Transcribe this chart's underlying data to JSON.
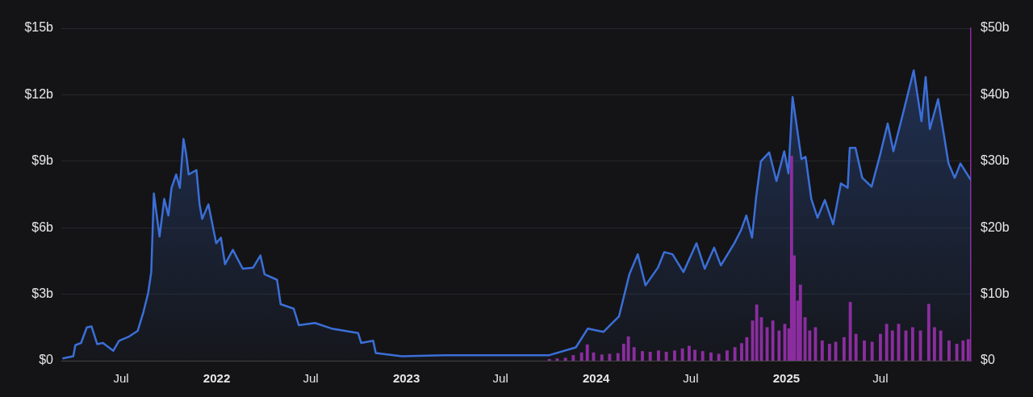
{
  "chart_data": {
    "type": "area",
    "xlim": [
      "2021-03-08",
      "2025-12-22"
    ],
    "xticks": [
      {
        "value": "2021-07-01",
        "label": "Jul"
      },
      {
        "value": "2022-01-01",
        "label": "2022"
      },
      {
        "value": "2022-07-01",
        "label": "Jul"
      },
      {
        "value": "2023-01-01",
        "label": "2023"
      },
      {
        "value": "2023-07-01",
        "label": "Jul"
      },
      {
        "value": "2024-01-01",
        "label": "2024"
      },
      {
        "value": "2024-07-01",
        "label": "Jul"
      },
      {
        "value": "2025-01-01",
        "label": "2025"
      },
      {
        "value": "2025-07-01",
        "label": "Jul"
      }
    ],
    "ylim": [
      0,
      15
    ],
    "yticks": [
      {
        "value": 0,
        "label": "$0"
      },
      {
        "value": 3,
        "label": "$3b"
      },
      {
        "value": 6,
        "label": "$6b"
      },
      {
        "value": 9,
        "label": "$9b"
      },
      {
        "value": 12,
        "label": "$12b"
      },
      {
        "value": 15,
        "label": "$15b"
      }
    ],
    "y2lim": [
      0,
      50
    ],
    "y2ticks": [
      {
        "value": 0,
        "label": "$0"
      },
      {
        "value": 10,
        "label": "$10b"
      },
      {
        "value": 20,
        "label": "$20b"
      },
      {
        "value": 30,
        "label": "$30b"
      },
      {
        "value": 40,
        "label": "$40b"
      },
      {
        "value": 50,
        "label": "$50b"
      }
    ],
    "grid": "y",
    "legend": false,
    "marker": "none",
    "series": [
      {
        "color": "#3b6fd8",
        "x": [
          "2021-03-10",
          "2021-03-31",
          "2021-04-04",
          "2021-04-15",
          "2021-04-26",
          "2021-05-05",
          "2021-05-16",
          "2021-05-27",
          "2021-06-16",
          "2021-06-27",
          "2021-07-17",
          "2021-08-02",
          "2021-08-13",
          "2021-08-22",
          "2021-08-28",
          "2021-09-02",
          "2021-09-13",
          "2021-09-22",
          "2021-09-30",
          "2021-10-06",
          "2021-10-15",
          "2021-10-22",
          "2021-10-29",
          "2021-11-03",
          "2021-11-08",
          "2021-11-23",
          "2021-11-29",
          "2021-12-04",
          "2021-12-16",
          "2021-12-31",
          "2022-01-09",
          "2022-01-17",
          "2022-02-01",
          "2022-02-20",
          "2022-03-12",
          "2022-03-26",
          "2022-04-03",
          "2022-04-27",
          "2022-05-04",
          "2022-05-29",
          "2022-06-08",
          "2022-07-09",
          "2022-08-10",
          "2022-09-30",
          "2022-10-06",
          "2022-10-29",
          "2022-11-03",
          "2022-12-23",
          "2023-03-15",
          "2023-07-01",
          "2023-10-03",
          "2023-11-23",
          "2023-12-16",
          "2024-01-15",
          "2024-02-14",
          "2024-03-05",
          "2024-03-21",
          "2024-04-05",
          "2024-04-29",
          "2024-05-11",
          "2024-05-27",
          "2024-06-17",
          "2024-07-12",
          "2024-07-28",
          "2024-08-15",
          "2024-08-28",
          "2024-09-23",
          "2024-10-06",
          "2024-10-16",
          "2024-10-27",
          "2024-11-04",
          "2024-11-13",
          "2024-11-29",
          "2024-12-13",
          "2024-12-28",
          "2025-01-05",
          "2025-01-13",
          "2025-01-30",
          "2025-02-07",
          "2025-02-18",
          "2025-03-02",
          "2025-03-16",
          "2025-04-01",
          "2025-04-16",
          "2025-04-29",
          "2025-05-03",
          "2025-05-14",
          "2025-05-27",
          "2025-06-14",
          "2025-06-30",
          "2025-07-15",
          "2025-07-26",
          "2025-08-15",
          "2025-09-03",
          "2025-09-18",
          "2025-09-26",
          "2025-10-04",
          "2025-10-20",
          "2025-11-09",
          "2025-11-21",
          "2025-12-02",
          "2025-12-22"
        ],
        "values": [
          0.1,
          0.2,
          0.7,
          0.8,
          1.5,
          1.55,
          0.75,
          0.8,
          0.45,
          0.9,
          1.1,
          1.35,
          2.2,
          3.05,
          4.0,
          7.55,
          5.6,
          7.3,
          6.55,
          7.8,
          8.4,
          7.8,
          10.0,
          9.35,
          8.4,
          8.6,
          7.05,
          6.4,
          7.05,
          5.3,
          5.55,
          4.35,
          5.0,
          4.15,
          4.2,
          4.75,
          3.9,
          3.65,
          2.55,
          2.35,
          1.6,
          1.7,
          1.45,
          1.25,
          0.8,
          0.9,
          0.35,
          0.2,
          0.25,
          0.25,
          0.25,
          0.6,
          1.45,
          1.3,
          2.0,
          3.9,
          4.8,
          3.4,
          4.2,
          4.9,
          4.8,
          4.0,
          5.3,
          4.15,
          5.1,
          4.3,
          5.3,
          5.9,
          6.55,
          5.55,
          7.4,
          9.0,
          9.4,
          8.1,
          9.45,
          8.45,
          11.9,
          9.1,
          9.2,
          7.3,
          6.45,
          7.25,
          6.15,
          8.0,
          7.8,
          9.6,
          9.6,
          8.25,
          7.85,
          9.25,
          10.7,
          9.45,
          11.3,
          13.1,
          10.8,
          12.8,
          10.45,
          11.8,
          8.9,
          8.25,
          8.9,
          8.15
        ]
      },
      {
        "type": "bar",
        "axis": "y2",
        "color": "#8b2d9f",
        "x": [
          "2023-10-03",
          "2023-10-18",
          "2023-11-03",
          "2023-11-18",
          "2023-12-04",
          "2023-12-15",
          "2023-12-27",
          "2024-01-12",
          "2024-01-27",
          "2024-02-12",
          "2024-02-23",
          "2024-03-03",
          "2024-03-14",
          "2024-03-30",
          "2024-04-14",
          "2024-04-30",
          "2024-05-15",
          "2024-05-31",
          "2024-06-15",
          "2024-06-28",
          "2024-07-09",
          "2024-07-24",
          "2024-08-09",
          "2024-08-24",
          "2024-09-09",
          "2024-09-24",
          "2024-10-07",
          "2024-10-17",
          "2024-10-28",
          "2024-11-05",
          "2024-11-14",
          "2024-11-25",
          "2024-12-06",
          "2024-12-18",
          "2024-12-29",
          "2025-01-06",
          "2025-01-11",
          "2025-01-16",
          "2025-01-23",
          "2025-01-28",
          "2025-02-06",
          "2025-02-15",
          "2025-02-26",
          "2025-03-11",
          "2025-03-25",
          "2025-04-06",
          "2025-04-22",
          "2025-05-04",
          "2025-05-15",
          "2025-05-31",
          "2025-06-15",
          "2025-07-01",
          "2025-07-13",
          "2025-07-24",
          "2025-08-05",
          "2025-08-19",
          "2025-09-01",
          "2025-09-16",
          "2025-10-02",
          "2025-10-13",
          "2025-10-25",
          "2025-11-10",
          "2025-11-25",
          "2025-12-07",
          "2025-12-17"
        ],
        "values": [
          0.2,
          0.3,
          0.4,
          0.8,
          1.2,
          2.4,
          1.2,
          0.9,
          1.0,
          1.1,
          2.5,
          3.6,
          2.0,
          1.4,
          1.3,
          1.5,
          1.3,
          1.5,
          1.8,
          2.2,
          1.6,
          1.4,
          1.2,
          1.0,
          1.5,
          2.0,
          2.6,
          3.5,
          6.0,
          8.4,
          6.5,
          5.0,
          6.0,
          4.5,
          5.5,
          4.8,
          30.8,
          15.8,
          9.0,
          11.4,
          6.5,
          4.5,
          5.0,
          3.0,
          2.5,
          2.8,
          3.5,
          8.8,
          4.0,
          3.0,
          2.8,
          4.0,
          5.5,
          4.5,
          5.5,
          4.5,
          5.0,
          4.5,
          8.5,
          5.0,
          4.5,
          3.0,
          2.5,
          3.0,
          3.2
        ]
      }
    ]
  }
}
